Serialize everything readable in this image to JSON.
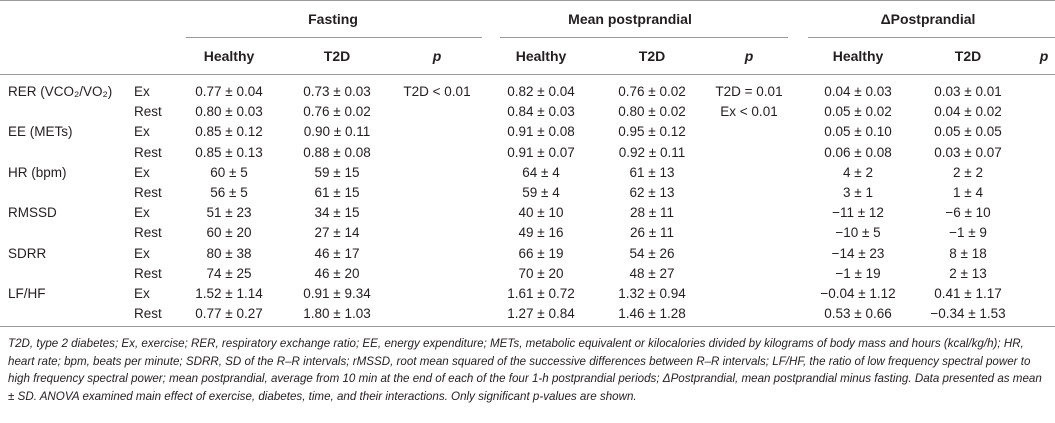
{
  "groups": [
    "Fasting",
    "Mean postprandial",
    "ΔPostprandial"
  ],
  "subheaders": [
    "Healthy",
    "T2D",
    "p"
  ],
  "rows": [
    {
      "param": "RER (VCO₂/VO₂)",
      "cond": "Ex",
      "f_h": "0.77 ± 0.04",
      "f_t": "0.73 ± 0.03",
      "f_p": "T2D < 0.01",
      "m_h": "0.82 ± 0.04",
      "m_t": "0.76 ± 0.02",
      "m_p": "T2D = 0.01",
      "d_h": "0.04 ± 0.03",
      "d_t": "0.03 ± 0.01",
      "d_p": ""
    },
    {
      "param": "",
      "cond": "Rest",
      "f_h": "0.80 ± 0.03",
      "f_t": "0.76 ± 0.02",
      "f_p": "",
      "m_h": "0.84 ± 0.03",
      "m_t": "0.80 ± 0.02",
      "m_p": "Ex < 0.01",
      "d_h": "0.05 ± 0.02",
      "d_t": "0.04 ± 0.02",
      "d_p": ""
    },
    {
      "param": "EE (METs)",
      "cond": "Ex",
      "f_h": "0.85 ± 0.12",
      "f_t": "0.90 ± 0.11",
      "f_p": "",
      "m_h": "0.91 ± 0.08",
      "m_t": "0.95 ± 0.12",
      "m_p": "",
      "d_h": "0.05 ± 0.10",
      "d_t": "0.05 ± 0.05",
      "d_p": ""
    },
    {
      "param": "",
      "cond": "Rest",
      "f_h": "0.85 ± 0.13",
      "f_t": "0.88 ± 0.08",
      "f_p": "",
      "m_h": "0.91 ± 0.07",
      "m_t": "0.92 ± 0.11",
      "m_p": "",
      "d_h": "0.06 ± 0.08",
      "d_t": "0.03 ± 0.07",
      "d_p": ""
    },
    {
      "param": "HR (bpm)",
      "cond": "Ex",
      "f_h": "60 ± 5",
      "f_t": "59 ± 15",
      "f_p": "",
      "m_h": "64 ± 4",
      "m_t": "61 ± 13",
      "m_p": "",
      "d_h": "4 ± 2",
      "d_t": "2 ± 2",
      "d_p": ""
    },
    {
      "param": "",
      "cond": "Rest",
      "f_h": "56 ± 5",
      "f_t": "61 ± 15",
      "f_p": "",
      "m_h": "59 ± 4",
      "m_t": "62 ± 13",
      "m_p": "",
      "d_h": "3 ± 1",
      "d_t": "1 ± 4",
      "d_p": ""
    },
    {
      "param": "RMSSD",
      "cond": "Ex",
      "f_h": "51 ± 23",
      "f_t": "34 ± 15",
      "f_p": "",
      "m_h": "40 ± 10",
      "m_t": "28 ± 11",
      "m_p": "",
      "d_h": "−11 ± 12",
      "d_t": "−6 ± 10",
      "d_p": ""
    },
    {
      "param": "",
      "cond": "Rest",
      "f_h": "60 ± 20",
      "f_t": "27 ± 14",
      "f_p": "",
      "m_h": "49 ± 16",
      "m_t": "26 ± 11",
      "m_p": "",
      "d_h": "−10 ± 5",
      "d_t": "−1 ± 9",
      "d_p": ""
    },
    {
      "param": "SDRR",
      "cond": "Ex",
      "f_h": "80 ± 38",
      "f_t": "46 ± 17",
      "f_p": "",
      "m_h": "66 ± 19",
      "m_t": "54 ± 26",
      "m_p": "",
      "d_h": "−14 ± 23",
      "d_t": "8 ± 18",
      "d_p": ""
    },
    {
      "param": "",
      "cond": "Rest",
      "f_h": "74 ± 25",
      "f_t": "46 ± 20",
      "f_p": "",
      "m_h": "70 ± 20",
      "m_t": "48 ± 27",
      "m_p": "",
      "d_h": "−1 ± 19",
      "d_t": "2 ± 13",
      "d_p": ""
    },
    {
      "param": "LF/HF",
      "cond": "Ex",
      "f_h": "1.52 ± 1.14",
      "f_t": "0.91 ± 9.34",
      "f_p": "",
      "m_h": "1.61 ± 0.72",
      "m_t": "1.32 ± 0.94",
      "m_p": "",
      "d_h": "−0.04 ± 1.12",
      "d_t": "0.41 ± 1.17",
      "d_p": ""
    },
    {
      "param": "",
      "cond": "Rest",
      "f_h": "0.77 ± 0.27",
      "f_t": "1.80 ± 1.03",
      "f_p": "",
      "m_h": "1.27 ± 0.84",
      "m_t": "1.46 ± 1.28",
      "m_p": "",
      "d_h": "0.53 ± 0.66",
      "d_t": "−0.34 ± 1.53",
      "d_p": ""
    }
  ],
  "footnote": "T2D, type 2 diabetes; Ex, exercise; RER, respiratory exchange ratio; EE, energy expenditure; METs, metabolic equivalent or kilocalories divided by kilograms of body mass and hours (kcal/kg/h); HR, heart rate; bpm, beats per minute; SDRR, SD of the R–R intervals; rMSSD, root mean squared of the successive differences between R–R intervals; LF/HF, the ratio of low frequency spectral power to high frequency spectral power; mean postprandial, average from 10 min at the end of each of the four 1-h postprandial periods; ΔPostprandial, mean postprandial minus fasting. Data presented as mean ± SD. ANOVA examined main effect of exercise, diabetes, time, and their interactions. Only significant p-values are shown."
}
